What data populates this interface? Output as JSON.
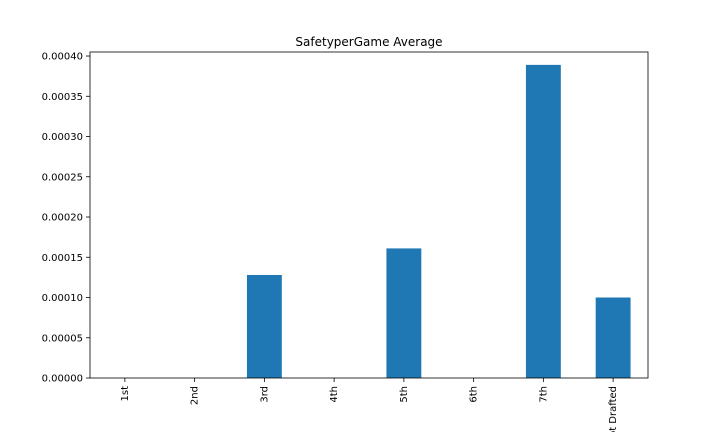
{
  "chart_data": {
    "type": "bar",
    "title": "SafetyperGame Average",
    "xlabel": "",
    "ylabel": "",
    "categories": [
      "1st",
      "2nd",
      "3rd",
      "4th",
      "5th",
      "6th",
      "7th",
      "Not Drafted"
    ],
    "values": [
      0,
      0,
      0.000128,
      0,
      0.000161,
      0,
      0.000389,
      0.0001
    ],
    "ylim": [
      0,
      0.000405
    ],
    "yticks": [
      "0.00000",
      "0.00005",
      "0.00010",
      "0.00015",
      "0.00020",
      "0.00025",
      "0.00030",
      "0.00035",
      "0.00040"
    ],
    "ytick_values": [
      0,
      5e-05,
      0.0001,
      0.00015,
      0.0002,
      0.00025,
      0.0003,
      0.00035,
      0.0004
    ],
    "bar_color": "#1f77b4",
    "grid": false,
    "legend": "none"
  }
}
